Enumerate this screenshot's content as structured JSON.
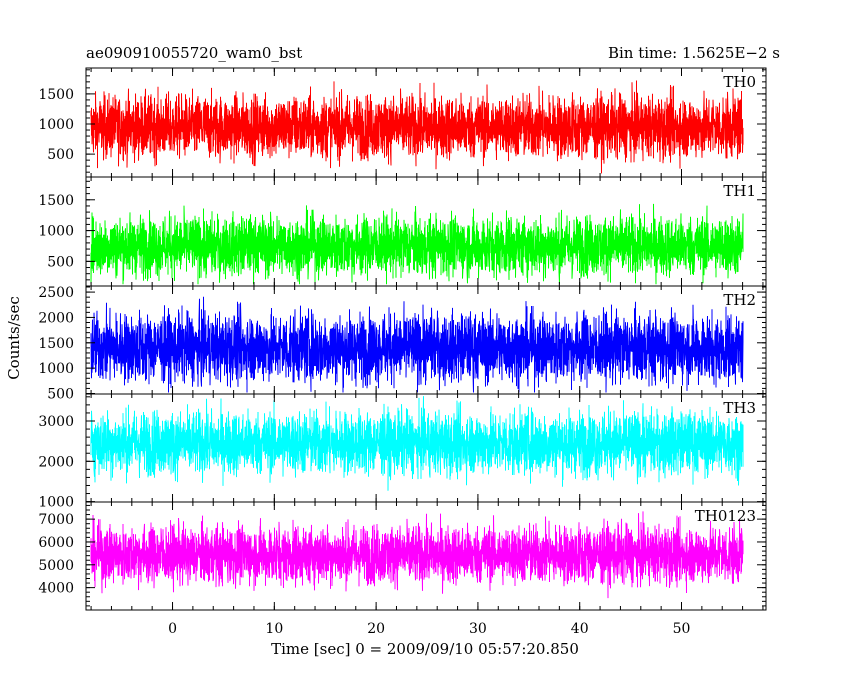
{
  "chart_data": {
    "type": "line",
    "title_left": "ae090910055720_wam0_bst",
    "title_right": "Bin time: 1.5625E−2 s",
    "xlabel": "Time [sec] 0 = 2009/09/10 05:57:20.850",
    "ylabel": "Counts/sec",
    "xlim": [
      -8.5,
      58.3
    ],
    "x_ticks": [
      "0",
      "10",
      "20",
      "30",
      "40",
      "50"
    ],
    "x_tick_values": [
      0,
      10,
      20,
      30,
      40,
      50
    ],
    "data_x_range": [
      -8.0,
      56.0
    ],
    "bin_time_s": 0.015625,
    "panels": [
      {
        "name": "TH0",
        "color": "#ff0000",
        "ylim": [
          120,
          1930
        ],
        "yticks": [
          500,
          1000,
          1500
        ],
        "ytick_labels": [
          "500",
          "1000",
          "1500"
        ],
        "mean": 950,
        "spread": 430,
        "floor": 180,
        "ceil": 1920
      },
      {
        "name": "TH1",
        "color": "#00ff00",
        "ylim": [
          100,
          1870
        ],
        "yticks": [
          500,
          1000,
          1500
        ],
        "ytick_labels": [
          "500",
          "1000",
          "1500"
        ],
        "mean": 750,
        "spread": 400,
        "floor": 130,
        "ceil": 1800
      },
      {
        "name": "TH2",
        "color": "#0000ff",
        "ylim": [
          490,
          2620
        ],
        "yticks": [
          500,
          1000,
          1500,
          2000,
          2500
        ],
        "ytick_labels": [
          "500",
          "1000",
          "1500",
          "2000",
          "2500"
        ],
        "mean": 1400,
        "spread": 560,
        "floor": 520,
        "ceil": 2600
      },
      {
        "name": "TH3",
        "color": "#00ffff",
        "ylim": [
          990,
          3670
        ],
        "yticks": [
          1000,
          2000,
          3000
        ],
        "ytick_labels": [
          "1000",
          "2000",
          "3000"
        ],
        "mean": 2450,
        "spread": 650,
        "floor": 1080,
        "ceil": 3660
      },
      {
        "name": "TH0123",
        "color": "#ff00ff",
        "ylim": [
          3020,
          7750
        ],
        "yticks": [
          4000,
          5000,
          6000,
          7000
        ],
        "ytick_labels": [
          "4000",
          "5000",
          "6000",
          "7000"
        ],
        "mean": 5450,
        "spread": 1050,
        "floor": 3060,
        "ceil": 7700
      }
    ]
  }
}
